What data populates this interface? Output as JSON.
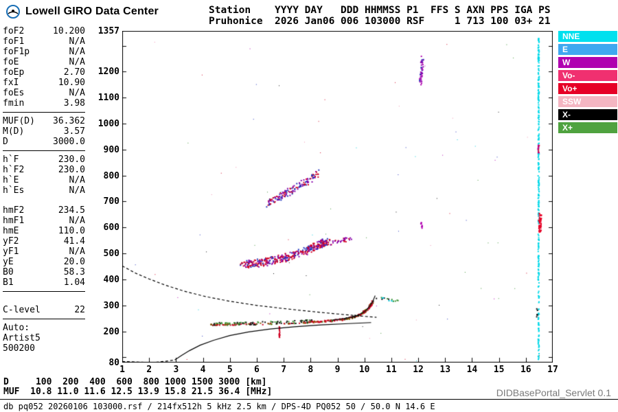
{
  "header": {
    "brand": "Lowell GIRO Data Center",
    "station_line1": "Station    YYYY DAY   DDD HHMMSS P1  FFS S AXN PPS IGA PS",
    "station_line2": "Pruhonice  2026 Jan06 006 103000 RSF     1 713 100 03+ 21"
  },
  "left_panel": {
    "groups": [
      {
        "name": "scaled-frequencies",
        "rule_after": true,
        "rows": [
          {
            "label": "foF2",
            "value": "10.200"
          },
          {
            "label": "foF1",
            "value": "N/A"
          },
          {
            "label": "foF1p",
            "value": "N/A"
          },
          {
            "label": "foE",
            "value": "N/A"
          },
          {
            "label": "foEp",
            "value": "2.70"
          },
          {
            "label": "fxI",
            "value": "10.90"
          },
          {
            "label": "foEs",
            "value": "N/A"
          },
          {
            "label": "fmin",
            "value": "3.98"
          }
        ]
      },
      {
        "name": "muf-group",
        "rule_after": true,
        "rows": [
          {
            "label": "MUF(D)",
            "value": "36.362"
          },
          {
            "label": "M(D)",
            "value": "3.57"
          },
          {
            "label": "D",
            "value": "3000.0"
          }
        ]
      },
      {
        "name": "virtual-heights",
        "gap_after": true,
        "rows": [
          {
            "label": "h`F",
            "value": "230.0"
          },
          {
            "label": "h`F2",
            "value": "230.0"
          },
          {
            "label": "h`E",
            "value": "N/A"
          },
          {
            "label": "h`Es",
            "value": "N/A"
          }
        ]
      },
      {
        "name": "profile-params",
        "rule_after": true,
        "rows": [
          {
            "label": "hmF2",
            "value": "234.5"
          },
          {
            "label": "hmF1",
            "value": "N/A"
          },
          {
            "label": "hmE",
            "value": "110.0"
          },
          {
            "label": "yF2",
            "value": "41.4"
          },
          {
            "label": "yF1",
            "value": "N/A"
          },
          {
            "label": "yE",
            "value": "20.0"
          },
          {
            "label": "B0",
            "value": "58.3"
          },
          {
            "label": "B1",
            "value": "1.04"
          }
        ]
      },
      {
        "name": "confidence",
        "gap_before": true,
        "rule_after": true,
        "rows": [
          {
            "label": "C-level",
            "value": "22"
          }
        ]
      },
      {
        "name": "autoscaling",
        "rows": [
          {
            "label": "Auto:",
            "value": ""
          },
          {
            "label": "Artist5",
            "value": ""
          },
          {
            "label": "500200",
            "value": ""
          }
        ]
      }
    ]
  },
  "legend": {
    "items": [
      {
        "label": "NNE",
        "color": "#00e0ee"
      },
      {
        "label": "E",
        "color": "#3fa8f0"
      },
      {
        "label": "W",
        "color": "#b000b0"
      },
      {
        "label": "Vo-",
        "color": "#f03070"
      },
      {
        "label": "Vo+",
        "color": "#e60026"
      },
      {
        "label": "SSW",
        "color": "#f4b6c2"
      },
      {
        "label": "X-",
        "color": "#000000"
      },
      {
        "label": "X+",
        "color": "#4fa23f"
      }
    ]
  },
  "footer": {
    "d_row": "D     100  200  400  600  800 1000 1500 3000 [km]",
    "muf_row": "MUF  10.8 11.0 11.6 12.5 13.9 15.8 21.5 36.4 [MHz]",
    "status_line": "db pq052 20260106 103000.rsf / 214fx512h 5 kHz 2.5 km / DPS-4D PQ052 50 / 50.0 N 14.6 E",
    "servlet_label": "DIDBasePortal_Servlet 0.1"
  },
  "chart_data": {
    "type": "scatter",
    "station": "Pruhonice",
    "timestamp": "2026 Jan06 006 103000",
    "x_axis": {
      "unit": "MHz",
      "min": 1,
      "max": 17,
      "ticks": [
        1,
        2,
        3,
        4,
        5,
        6,
        7,
        8,
        9,
        10,
        11,
        12,
        13,
        14,
        15,
        16,
        17
      ]
    },
    "y_axis": {
      "unit": "km",
      "min": 80,
      "max": 1357,
      "tick_labels": [
        1357,
        1200,
        1100,
        1000,
        900,
        800,
        700,
        600,
        500,
        400,
        300,
        200,
        80
      ]
    },
    "d_muf_scale": {
      "D_km": [
        100,
        200,
        400,
        600,
        800,
        1000,
        1500,
        3000
      ],
      "MUF_MHz": [
        10.8,
        11.0,
        11.6,
        12.5,
        13.9,
        15.8,
        21.5,
        36.4
      ]
    },
    "curves": [
      {
        "name": "profile-base-dashed",
        "style": "dashed",
        "color": "#000000",
        "points": [
          [
            1.0,
            84
          ],
          [
            1.6,
            82
          ],
          [
            2.15,
            80
          ],
          [
            2.6,
            85
          ],
          [
            2.95,
            90
          ]
        ]
      },
      {
        "name": "true-height-profile",
        "style": "solid",
        "color": "#000000",
        "points": [
          [
            2.95,
            90
          ],
          [
            3.2,
            107
          ],
          [
            3.5,
            126
          ],
          [
            3.9,
            147
          ],
          [
            4.4,
            166
          ],
          [
            5.0,
            184
          ],
          [
            5.7,
            198
          ],
          [
            6.5,
            209
          ],
          [
            7.4,
            218
          ],
          [
            8.4,
            225
          ],
          [
            9.4,
            230
          ],
          [
            10.25,
            234
          ]
        ]
      },
      {
        "name": "muf-transmission-curve",
        "style": "dashed",
        "color": "#000000",
        "points": [
          [
            1.0,
            452
          ],
          [
            1.5,
            424
          ],
          [
            2.0,
            402
          ],
          [
            2.6,
            378
          ],
          [
            3.3,
            355
          ],
          [
            4.1,
            334
          ],
          [
            5.0,
            316
          ],
          [
            6.0,
            300
          ],
          [
            7.0,
            288
          ],
          [
            8.0,
            277
          ],
          [
            9.0,
            267
          ],
          [
            9.9,
            259
          ],
          [
            10.45,
            254
          ]
        ]
      },
      {
        "name": "f-trace-cusp",
        "style": "solid",
        "color": "#101010",
        "points": [
          [
            8.8,
            243
          ],
          [
            9.3,
            250
          ],
          [
            9.7,
            260
          ],
          [
            10.0,
            275
          ],
          [
            10.2,
            297
          ],
          [
            10.32,
            318
          ],
          [
            10.4,
            338
          ]
        ]
      }
    ],
    "scatter_clusters": [
      {
        "name": "f-trace-echo",
        "colors": [
          "#d00024",
          "#101010",
          "#3f9436",
          "#d00024",
          "#8a5a00"
        ],
        "path": [
          [
            4.2,
            228
          ],
          [
            5.0,
            229
          ],
          [
            6.0,
            231
          ],
          [
            7.0,
            234
          ],
          [
            8.0,
            238
          ],
          [
            8.7,
            243
          ],
          [
            9.2,
            249
          ],
          [
            9.6,
            258
          ],
          [
            9.9,
            272
          ],
          [
            10.15,
            294
          ],
          [
            10.3,
            320
          ]
        ],
        "count": 320,
        "jx": 0.04,
        "jy": 3,
        "size": 2
      },
      {
        "name": "f-trace-green-fringe",
        "colors": [
          "#3f9436",
          "#101010"
        ],
        "path": [
          [
            4.3,
            234
          ],
          [
            5.5,
            236
          ],
          [
            6.8,
            240
          ],
          [
            8.0,
            245
          ]
        ],
        "count": 55,
        "jx": 0.05,
        "jy": 2,
        "size": 2
      },
      {
        "name": "second-reflection",
        "colors": [
          "#d00024",
          "#d00024",
          "#8800aa",
          "#2233bb"
        ],
        "path": [
          [
            5.35,
            458
          ],
          [
            5.8,
            463
          ],
          [
            6.2,
            468
          ],
          [
            6.6,
            475
          ],
          [
            7.0,
            485
          ],
          [
            7.4,
            498
          ],
          [
            7.8,
            513
          ],
          [
            8.1,
            527
          ],
          [
            8.4,
            541
          ],
          [
            8.7,
            550
          ]
        ],
        "count": 380,
        "jx": 0.07,
        "jy": 15,
        "size": 2
      },
      {
        "name": "second-reflection-tail",
        "colors": [
          "#d00024",
          "#8800aa"
        ],
        "path": [
          [
            8.8,
            548
          ],
          [
            9.1,
            553
          ],
          [
            9.45,
            558
          ]
        ],
        "count": 28,
        "jx": 0.06,
        "jy": 8,
        "size": 2
      },
      {
        "name": "third-reflection",
        "colors": [
          "#d00024",
          "#8800aa",
          "#2233bb"
        ],
        "path": [
          [
            6.35,
            695
          ],
          [
            6.7,
            712
          ],
          [
            7.05,
            732
          ],
          [
            7.4,
            753
          ],
          [
            7.75,
            775
          ],
          [
            8.05,
            795
          ],
          [
            8.3,
            812
          ]
        ],
        "count": 140,
        "jx": 0.06,
        "jy": 14,
        "size": 2
      },
      {
        "name": "cusp-top-scatter",
        "colors": [
          "#3f9436",
          "#101010",
          "#00c8dc"
        ],
        "path": [
          [
            10.45,
            330
          ],
          [
            10.8,
            326
          ],
          [
            11.2,
            321
          ]
        ],
        "count": 16,
        "jx": 0.08,
        "jy": 5,
        "size": 2
      },
      {
        "name": "red-vertical-spur",
        "colors": [
          "#d00024"
        ],
        "path": [
          [
            6.82,
            180
          ],
          [
            6.82,
            226
          ]
        ],
        "count": 22,
        "jx": 0.01,
        "jy": 2,
        "size": 2
      },
      {
        "name": "interference-cyan-column",
        "colors": [
          "#00d8e8"
        ],
        "path": [
          [
            16.45,
            85
          ],
          [
            16.45,
            1335
          ]
        ],
        "count": 300,
        "jx": 0.02,
        "jy": 2,
        "size": 2
      },
      {
        "name": "interference-red-blob",
        "colors": [
          "#e60026"
        ],
        "path": [
          [
            16.5,
            585
          ],
          [
            16.5,
            660
          ]
        ],
        "count": 55,
        "jx": 0.05,
        "jy": 4,
        "size": 2
      },
      {
        "name": "interference-red-upper",
        "colors": [
          "#e60026",
          "#b000b0"
        ],
        "path": [
          [
            16.45,
            885
          ],
          [
            16.45,
            920
          ]
        ],
        "count": 14,
        "jx": 0.03,
        "jy": 4,
        "size": 2
      },
      {
        "name": "interference-black-specks",
        "colors": [
          "#101010"
        ],
        "path": [
          [
            16.38,
            250
          ],
          [
            16.4,
            300
          ]
        ],
        "count": 6,
        "jx": 0.02,
        "jy": 4,
        "size": 2
      },
      {
        "name": "purple-cluster-12mhz",
        "colors": [
          "#b000b0",
          "#8800aa",
          "#2233bb"
        ],
        "path": [
          [
            12.07,
            1155
          ],
          [
            12.1,
            1205
          ],
          [
            12.13,
            1258
          ]
        ],
        "count": 46,
        "jx": 0.05,
        "jy": 6,
        "size": 2
      },
      {
        "name": "purple-spur-12mhz",
        "colors": [
          "#b000b0"
        ],
        "path": [
          [
            12.1,
            596
          ],
          [
            12.1,
            622
          ]
        ],
        "count": 9,
        "jx": 0.03,
        "jy": 3,
        "size": 2
      },
      {
        "name": "background-noise",
        "random": true,
        "colors": [
          "#b000b0",
          "#2233bb",
          "#3f9436",
          "#00c8dc",
          "#d00024",
          "#101010",
          "#f090b0"
        ],
        "count": 80,
        "size": 1
      }
    ]
  }
}
